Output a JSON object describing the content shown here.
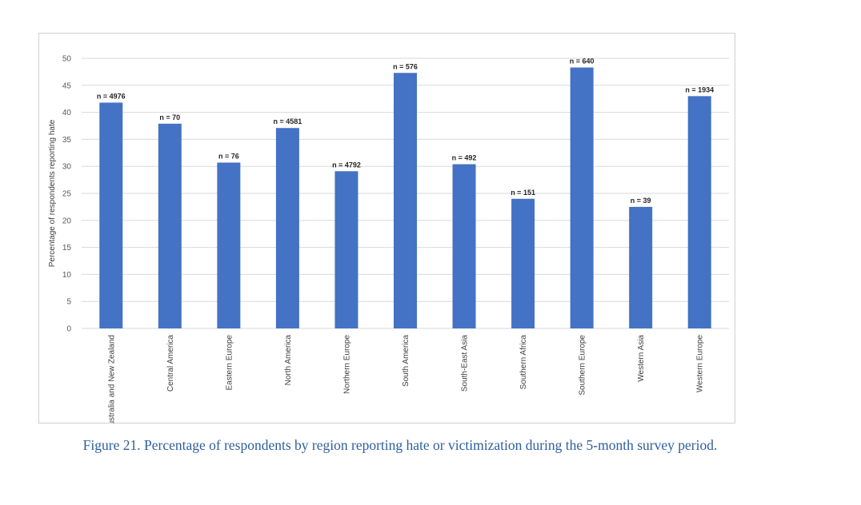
{
  "chart_data": {
    "type": "bar",
    "categories": [
      "Australia and New Zealand",
      "Central America",
      "Eastern Europe",
      "North America",
      "Northern Europe",
      "South America",
      "South-East Asia",
      "Southern Africa",
      "Southern Europe",
      "Western Asia",
      "Western Europe"
    ],
    "values": [
      41.8,
      37.9,
      30.7,
      37.1,
      29.1,
      47.3,
      30.4,
      24.0,
      48.3,
      22.5,
      43.0
    ],
    "data_labels": [
      "n = 4976",
      "n = 70",
      "n = 76",
      "n = 4581",
      "n = 4792",
      "n = 576",
      "n = 492",
      "n = 151",
      "n = 640",
      "n = 39",
      "n = 1934"
    ],
    "ylabel": "Percentage of respondents reporting hate",
    "ylim": [
      0,
      50
    ],
    "yticks": [
      0,
      5,
      10,
      15,
      20,
      25,
      30,
      35,
      40,
      45,
      50
    ],
    "grid": true,
    "colors": {
      "bar": "#4472c4",
      "grid": "#d9d9d9"
    }
  },
  "caption": "Figure 21. Percentage of respondents by region reporting hate or victimization during the 5-month survey period."
}
